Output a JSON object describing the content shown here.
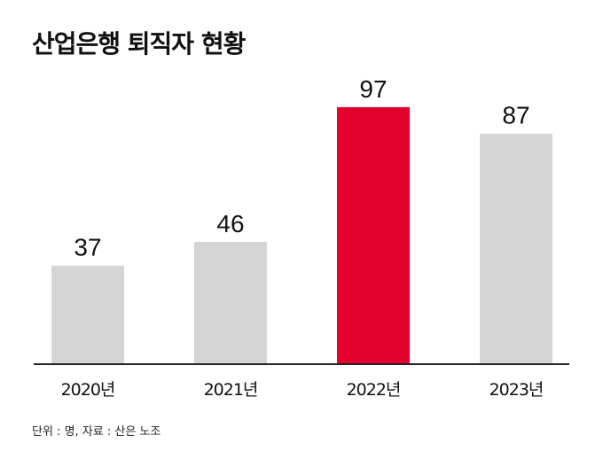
{
  "title": "산업은행 퇴직자 현황",
  "source_note": "단위 : 명, 자료 : 산은 노조",
  "colors": {
    "bar_default": "#d5d5d5",
    "bar_highlight": "#e2002d",
    "axis": "#222222",
    "text": "#111111"
  },
  "chart_data": {
    "type": "bar",
    "categories": [
      "2020년",
      "2021년",
      "2022년",
      "2023년"
    ],
    "values": [
      37,
      46,
      97,
      87
    ],
    "highlight_index": 2,
    "ylim": [
      0,
      100
    ],
    "grid": false,
    "title": "산업은행 퇴직자 현황",
    "xlabel": "",
    "ylabel": ""
  }
}
